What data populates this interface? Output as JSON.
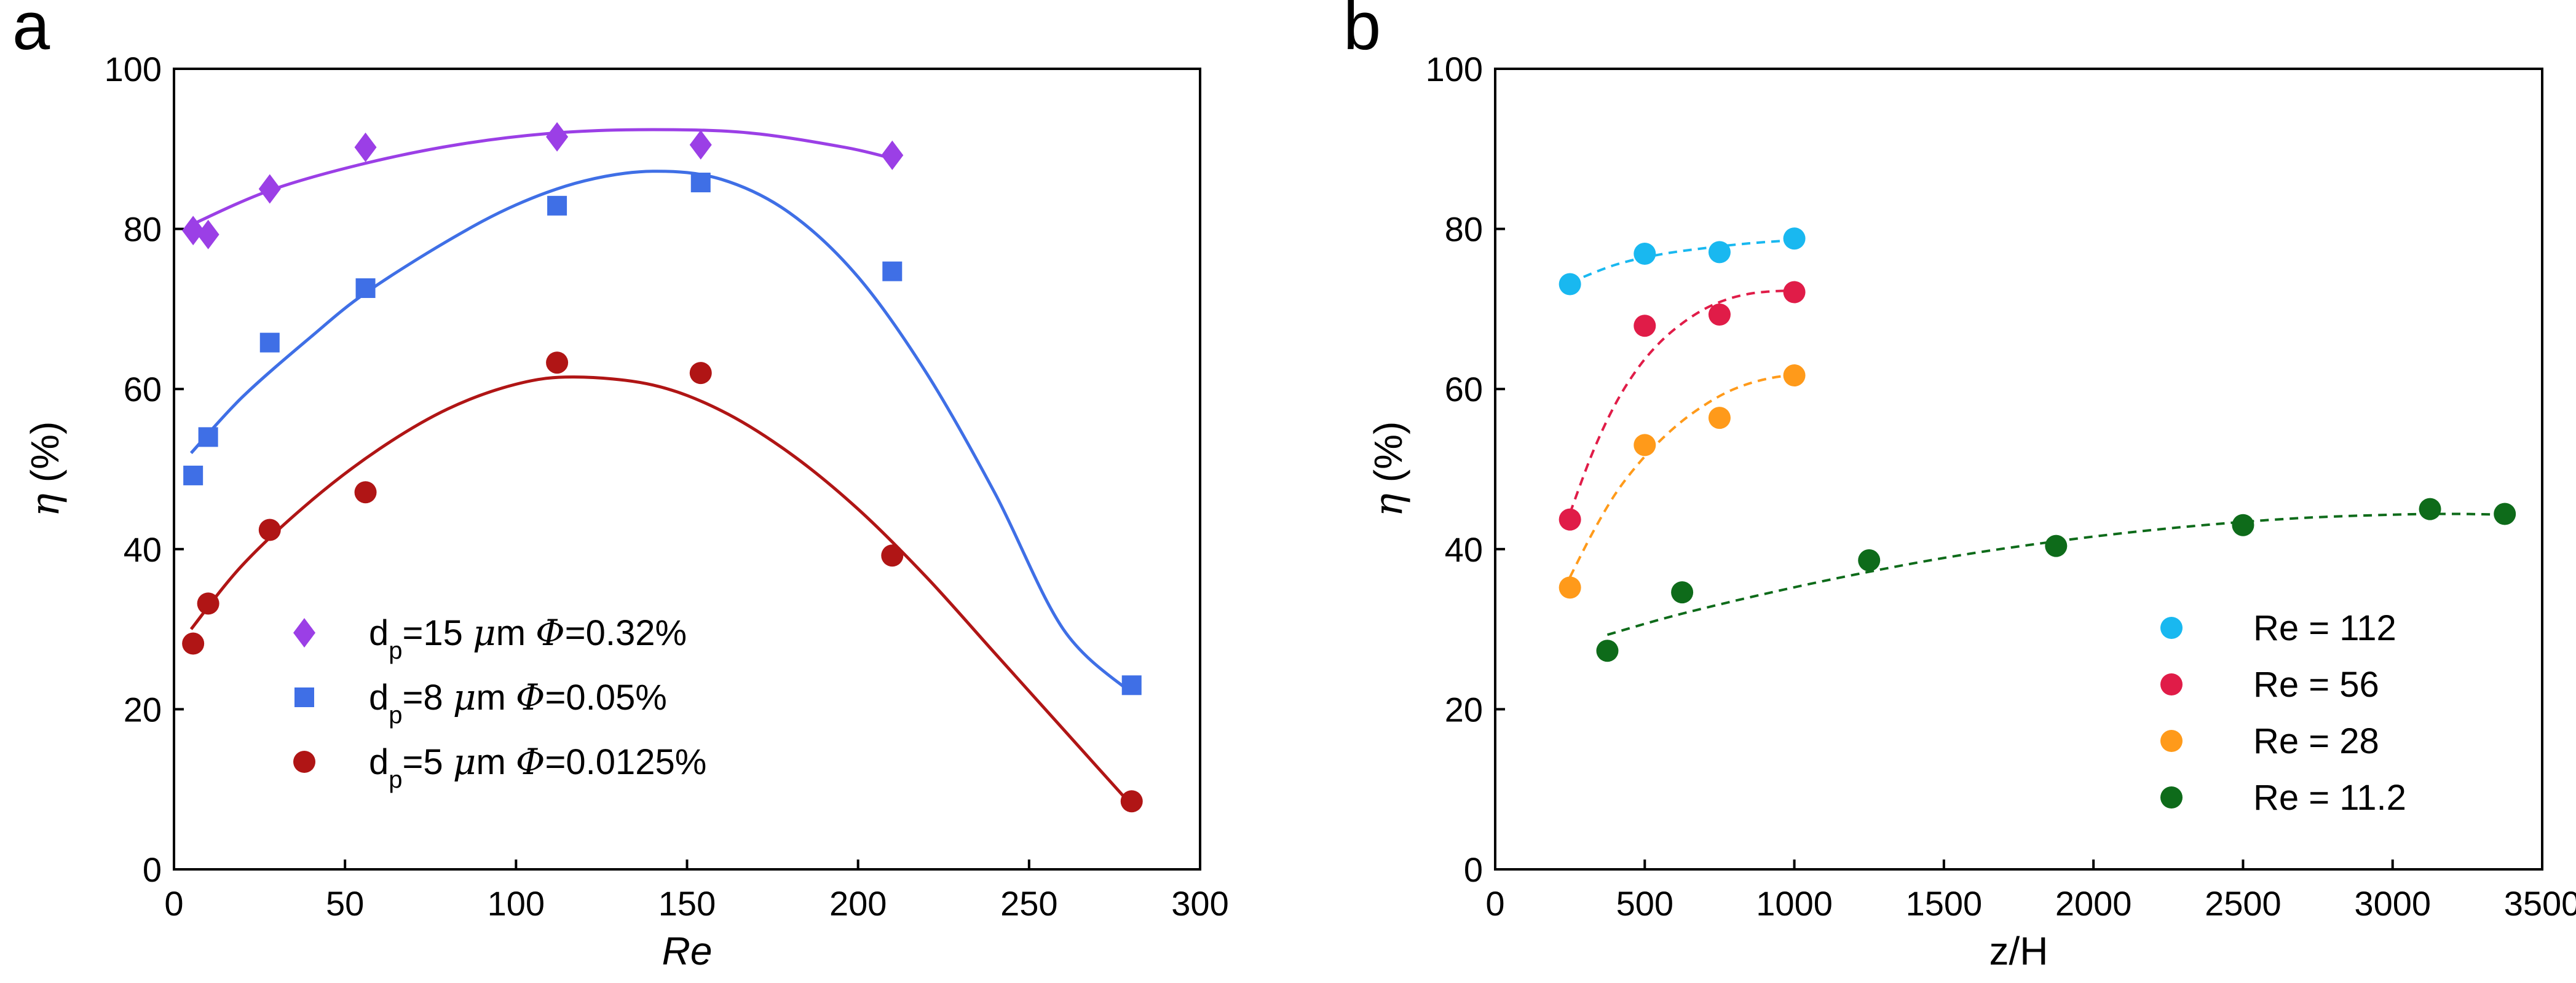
{
  "chart_data": [
    {
      "panel_label": "a",
      "type": "scatter",
      "xlabel": "Re",
      "ylabel": "η (%)",
      "xlim": [
        0,
        300
      ],
      "ylim": [
        0,
        100
      ],
      "xticks": [
        "0",
        "50",
        "100",
        "150",
        "200",
        "250",
        "300"
      ],
      "yticks": [
        "0",
        "20",
        "40",
        "60",
        "80",
        "100"
      ],
      "legend_position": "lower-left",
      "series": [
        {
          "name": "d_p=15 μm Φ=0.32%",
          "label_parts": [
            "d",
            "p",
            "=15 ",
            "μ",
            "m ",
            "Φ",
            "=0.32%"
          ],
          "marker": "diamond",
          "color": "#9b3fe6",
          "x": [
            5.6,
            10,
            28,
            56,
            112,
            154,
            210
          ],
          "y": [
            79.8,
            79.3,
            85,
            90.2,
            91.5,
            90.5,
            89.2
          ],
          "fit_type": "solid",
          "fit": {
            "x": [
              5,
              28,
              56,
              84,
              112,
              140,
              168,
              196,
              210
            ],
            "y": [
              80.5,
              84.8,
              88.2,
              90.6,
              92.0,
              92.4,
              92.0,
              90.2,
              88.8
            ]
          }
        },
        {
          "name": "d_p=8 μm Φ=0.05%",
          "label_parts": [
            "d",
            "p",
            "=8 ",
            "μ",
            "m ",
            "Φ",
            "=0.05%"
          ],
          "marker": "square",
          "color": "#3f6fe6",
          "x": [
            5.6,
            10,
            28,
            56,
            112,
            154,
            210,
            280
          ],
          "y": [
            49.2,
            54,
            65.8,
            72.6,
            82.9,
            85.8,
            74.7,
            23
          ],
          "fit_type": "solid",
          "fit": {
            "x": [
              5,
              20,
              40,
              56,
              80,
              100,
              120,
              140,
              160,
              180,
              200,
              220,
              240,
              260,
              280
            ],
            "y": [
              52,
              59,
              66.5,
              72,
              78.5,
              83,
              86,
              87.2,
              86.2,
              82,
              74,
              62,
              47,
              30,
              22
            ]
          }
        },
        {
          "name": "d_p=5 μm Φ=0.0125%",
          "label_parts": [
            "d",
            "p",
            "=5 ",
            "μ",
            "m ",
            "Φ",
            "=0.0125%"
          ],
          "marker": "circle",
          "color": "#b01515",
          "x": [
            5.6,
            10,
            28,
            56,
            112,
            154,
            210,
            280
          ],
          "y": [
            28.2,
            33.2,
            42.4,
            47.1,
            63.3,
            62,
            39.2,
            8.5
          ],
          "fit_type": "solid",
          "fit": {
            "x": [
              5,
              20,
              40,
              60,
              80,
              100,
              117,
              140,
              160,
              180,
              200,
              220,
              240,
              260,
              280
            ],
            "y": [
              30,
              38,
              46,
              52.5,
              57.5,
              60.6,
              61.5,
              60.5,
              57.3,
              52,
              45,
              36.5,
              27,
              17.5,
              8
            ]
          }
        }
      ]
    },
    {
      "panel_label": "b",
      "type": "scatter",
      "xlabel": "z/H",
      "ylabel": "η (%)",
      "xlim": [
        0,
        3500
      ],
      "ylim": [
        0,
        100
      ],
      "xticks": [
        "0",
        "500",
        "1000",
        "1500",
        "2000",
        "2500",
        "3000",
        "3500"
      ],
      "yticks": [
        "0",
        "20",
        "40",
        "60",
        "80",
        "100"
      ],
      "legend_position": "lower-right",
      "series": [
        {
          "name": "Re = 112",
          "marker": "circle",
          "color": "#19b8f0",
          "x": [
            250,
            500,
            750,
            1000
          ],
          "y": [
            73.1,
            76.9,
            77.1,
            78.8
          ],
          "fit_type": "dashed",
          "fit": {
            "x": [
              250,
              400,
              550,
              700,
              850,
              1000
            ],
            "y": [
              73.3,
              75.5,
              76.8,
              77.6,
              78.2,
              78.6
            ]
          }
        },
        {
          "name": "Re = 56",
          "marker": "circle",
          "color": "#e01c48",
          "x": [
            250,
            500,
            750,
            1000
          ],
          "y": [
            43.7,
            67.9,
            69.3,
            72.1
          ],
          "fit_type": "dashed",
          "fit": {
            "x": [
              250,
              325,
              400,
              475,
              550,
              625,
              700,
              775,
              850,
              925,
              1000
            ],
            "y": [
              44.5,
              52,
              58,
              62.5,
              65.8,
              68.2,
              70,
              71.2,
              71.9,
              72.2,
              72.3
            ]
          }
        },
        {
          "name": "Re = 28",
          "marker": "circle",
          "color": "#ff9a1a",
          "x": [
            250,
            500,
            750,
            1000
          ],
          "y": [
            35.2,
            53,
            56.4,
            61.7
          ],
          "fit_type": "dashed",
          "fit": {
            "x": [
              250,
              325,
              400,
              475,
              550,
              625,
              700,
              775,
              850,
              925,
              1000
            ],
            "y": [
              36.5,
              42,
              46.8,
              50.5,
              53.5,
              56,
              58,
              59.6,
              60.7,
              61.4,
              61.8
            ]
          }
        },
        {
          "name": "Re = 11.2",
          "marker": "circle",
          "color": "#0e6b1a",
          "x": [
            375,
            625,
            1250,
            1875,
            2500,
            3125,
            3375
          ],
          "y": [
            27.3,
            34.6,
            38.6,
            40.4,
            43,
            45,
            44.4
          ],
          "fit_type": "dashed",
          "fit": {
            "x": [
              375,
              600,
              900,
              1200,
              1500,
              1800,
              2100,
              2400,
              2700,
              3000,
              3200,
              3375
            ],
            "y": [
              29.3,
              31.7,
              34.4,
              36.8,
              38.9,
              40.6,
              42,
              43.1,
              43.9,
              44.3,
              44.4,
              44.3
            ]
          }
        }
      ]
    }
  ]
}
